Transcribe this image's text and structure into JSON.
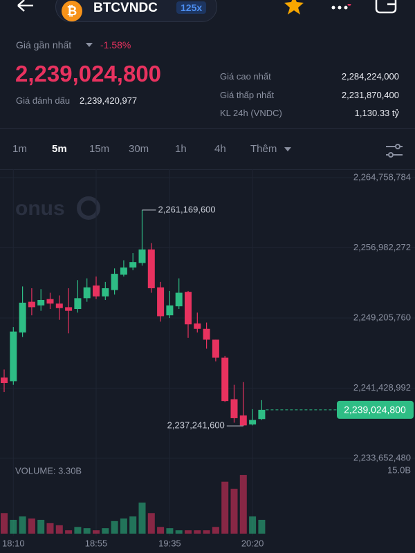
{
  "header": {
    "symbol": "BTCVNDC",
    "leverage": "125x"
  },
  "summary": {
    "last_price_label": "Giá gần nhất",
    "change": "-1.58%",
    "last_price": "2,239,024,800",
    "mark_price_label": "Giá đánh dấu",
    "mark_price": "2,239,420,977",
    "stats": [
      {
        "label": "Giá cao nhất",
        "value": "2,284,224,000"
      },
      {
        "label": "Giá thấp nhất",
        "value": "2,231,870,400"
      },
      {
        "label": "KL 24h (VNDC)",
        "value": "1,130.33 tỷ"
      }
    ]
  },
  "timeframes": [
    "1m",
    "5m",
    "15m",
    "30m",
    "1h",
    "4h",
    "Thêm"
  ],
  "chart_data": {
    "type": "candlestick",
    "watermark": "onus",
    "categories": [
      null,
      "18:10",
      null,
      null,
      null,
      null,
      null,
      null,
      null,
      null,
      "18:55",
      null,
      null,
      null,
      null,
      null,
      null,
      null,
      "19:35",
      null,
      null,
      null,
      null,
      null,
      null,
      null,
      null,
      "20:20",
      null
    ],
    "open": [
      2242600000,
      2242200000,
      2247600000,
      2251000000,
      2250600000,
      2251300000,
      2250800000,
      2250400000,
      2250200000,
      2251400000,
      2252800000,
      2251600000,
      2252300000,
      2254000000,
      2254800000,
      2255300000,
      2256800000,
      2252600000,
      2249500000,
      2250500000,
      2252100000,
      2248600000,
      2248000000,
      2246800000,
      2244800000,
      2240200000,
      2238400000,
      2237400000,
      2238000000
    ],
    "high": [
      2243500000,
      2248200000,
      2252700000,
      2252500000,
      2252400000,
      2252000000,
      2251700000,
      2252500000,
      2253400000,
      2253600000,
      2253800000,
      2253200000,
      2254700000,
      2255600000,
      2256400000,
      2261169600,
      2257500000,
      2253200000,
      2252200000,
      2253600000,
      2252200000,
      2249800000,
      2248700000,
      2246800000,
      2245000000,
      2241800000,
      2242100000,
      2239100000,
      2240100000
    ],
    "low": [
      2241000000,
      2241800000,
      2247100000,
      2249500000,
      2250000000,
      2250200000,
      2249000000,
      2247500000,
      2249800000,
      2251000000,
      2251300000,
      2251200000,
      2251800000,
      2253800000,
      2254500000,
      2255000000,
      2252000000,
      2248800000,
      2249200000,
      2250200000,
      2247000000,
      2247600000,
      2245800000,
      2244400000,
      2239900000,
      2237600000,
      2237241600,
      2237300000,
      2237900000
    ],
    "close": [
      2242000000,
      2247700000,
      2250900000,
      2250400000,
      2251200000,
      2250800000,
      2250300000,
      2250000000,
      2251400000,
      2252600000,
      2251600000,
      2252500000,
      2254100000,
      2254800000,
      2255400000,
      2256800000,
      2252500000,
      2249400000,
      2250600000,
      2252000000,
      2248500000,
      2248000000,
      2246800000,
      2244800000,
      2240000000,
      2238100000,
      2237300000,
      2237900000,
      2239024800
    ],
    "volume": [
      4900000000,
      3300000000,
      4100000000,
      3600000000,
      3300000000,
      2500000000,
      2000000000,
      800000000,
      1600000000,
      1300000000,
      800000000,
      1300000000,
      3000000000,
      3600000000,
      4100000000,
      7400000000,
      4900000000,
      1600000000,
      1300000000,
      800000000,
      800000000,
      800000000,
      800000000,
      1600000000,
      12400000000,
      10700000000,
      14000000000,
      4100000000,
      3300000000
    ],
    "up_color": "#2ebd85",
    "down_color": "#e8325f",
    "ylim": [
      2233652480,
      2264758784
    ],
    "yticks": [
      {
        "value": 2264758784,
        "label": "2,264,758,784"
      },
      {
        "value": 2256982272,
        "label": "2,256,982,272"
      },
      {
        "value": 2249205760,
        "label": "2,249,205,760"
      },
      {
        "value": 2241428992,
        "label": "2,241,428,992"
      },
      {
        "value": 2233652480,
        "label": "2,233,652,480"
      }
    ],
    "high_marker": {
      "value": 2261169600,
      "label": "2,261,169,600"
    },
    "low_marker": {
      "value": 2237241600,
      "label": "2,237,241,600"
    },
    "last_marker": {
      "value": 2239024800,
      "label": "2,239,024,800"
    },
    "volume_title": "VOLUME: 3.30B",
    "volume_ylim": [
      0,
      15000000000
    ],
    "volume_ticks": [
      {
        "value": 15000000000,
        "label": "15.0B"
      }
    ],
    "grid": true
  }
}
